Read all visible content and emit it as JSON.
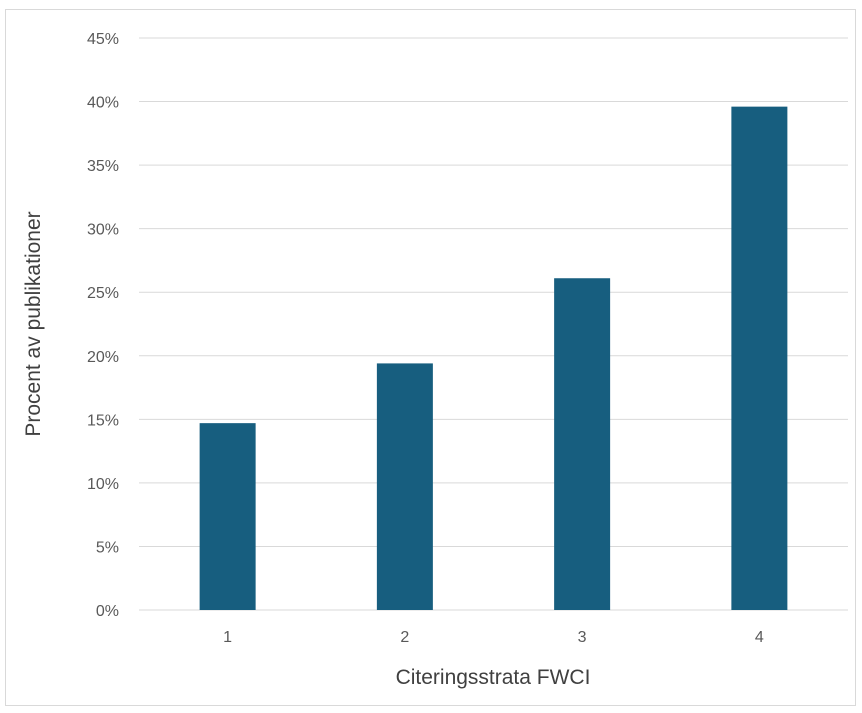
{
  "chart_data": {
    "type": "bar",
    "title": "",
    "xlabel": "Citeringsstrata FWCI",
    "ylabel": "Procent av publikationer",
    "categories": [
      "1",
      "2",
      "3",
      "4"
    ],
    "values": [
      14.7,
      19.4,
      26.1,
      39.6
    ],
    "ylim": [
      0,
      45
    ],
    "yticks": [
      0,
      5,
      10,
      15,
      20,
      25,
      30,
      35,
      40,
      45
    ],
    "ytick_labels": [
      "0%",
      "5%",
      "10%",
      "15%",
      "20%",
      "25%",
      "30%",
      "35%",
      "40%",
      "45%"
    ],
    "grid": true,
    "legend": "none",
    "bar_color": "#175e7f",
    "grid_color": "#d9d9d9"
  }
}
